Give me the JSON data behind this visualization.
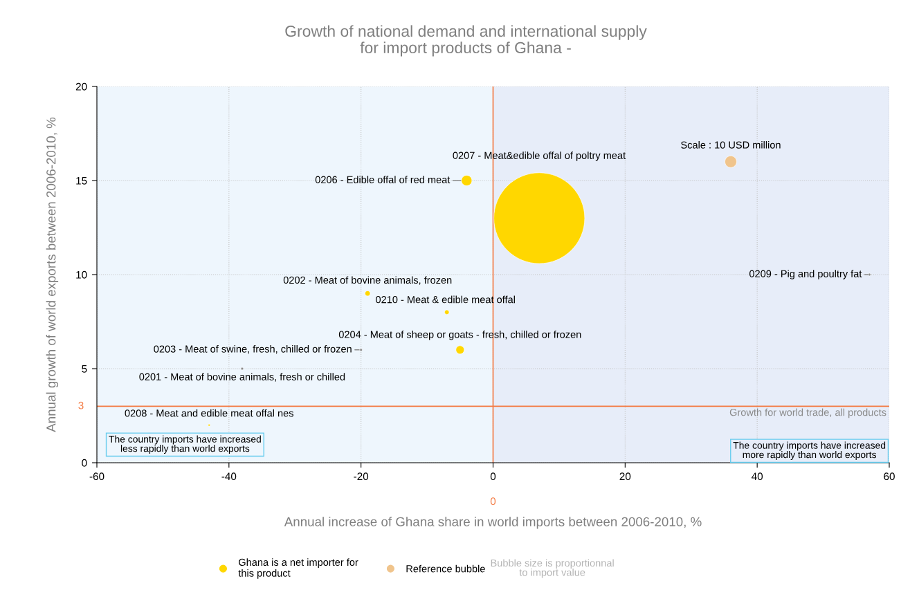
{
  "chart_data": {
    "type": "bubble",
    "title": "Growth of national demand and international supply\nfor import products of Ghana -",
    "xlabel": "Annual increase of Ghana share in world imports between 2006-2010, %",
    "ylabel": "Annual growth of world exports between 2006-2010, %",
    "xlim": [
      -60,
      60
    ],
    "ylim": [
      0,
      20
    ],
    "xticks": [
      -60,
      -40,
      -20,
      0,
      20,
      40,
      60
    ],
    "yticks": [
      0,
      5,
      10,
      15,
      20
    ],
    "grid": true,
    "legend": "bottom",
    "size_legend": [
      {
        "value": 10,
        "label": "Scale : 10 USD million"
      }
    ],
    "series": [
      {
        "name": "Ghana is a net importer for\nthis product",
        "color": "#ffd700",
        "x": [
          7,
          -4,
          57,
          -19,
          -7,
          -5,
          -20,
          -38,
          -43
        ],
        "values": [
          13,
          15,
          10,
          9,
          8,
          6,
          6,
          5,
          2
        ],
        "sizes": [
          600,
          8,
          0.5,
          2,
          1.5,
          5,
          0.5,
          0.5,
          0.3
        ],
        "colors": [
          "#ffd700",
          "#ffd700",
          "#8c8c8c",
          "#ffd700",
          "#ffd700",
          "#ffd700",
          "#8c8c8c",
          "#8c8c8c",
          "#ffd700"
        ]
      },
      {
        "name": "Reference bubble",
        "color": "#f0c48c"
      }
    ],
    "ref_lines": [
      {
        "axis": "x",
        "value": 0,
        "label": "0",
        "color": "#f47a42"
      },
      {
        "axis": "y",
        "value": 3,
        "label": "3",
        "color": "#f47a42"
      }
    ],
    "bands": [
      {
        "axis": "x",
        "from": -60,
        "to": 0,
        "label": "The country imports have increased\nless rapidly than world exports",
        "color": "#eef6fd"
      },
      {
        "axis": "x",
        "from": 0,
        "to": 60,
        "label": "The country imports have increased\nmore rapidly than world exports",
        "color": "#e7edf9"
      }
    ],
    "annotations": [
      "0207 - Meat&edible offal of poltry meat",
      {
        "text": "0206 - Edible offal of red meat",
        "x": -4,
        "y": 15
      },
      {
        "text": "0209 - Pig and poultry fat",
        "x": 57,
        "y": 10
      },
      {
        "text": "0202 - Meat of bovine animals, frozen",
        "x": -19,
        "y": 9
      },
      {
        "text": "0210 - Meat & edible meat offal",
        "x": -7,
        "y": 8
      },
      {
        "text": "0204 - Meat of sheep or goats - fresh, chilled or frozen",
        "x": -5,
        "y": 6
      },
      {
        "text": "0203 - Meat of swine, fresh, chilled or frozen",
        "x": -20,
        "y": 6
      },
      {
        "text": "0201 - Meat of bovine animals, fresh or chilled",
        "x": -38,
        "y": 5
      },
      {
        "text": "0208 - Meat and edible meat offal nes",
        "x": -43,
        "y": 2
      },
      {
        "text": "Growth for world trade, all products",
        "x": 60,
        "y": 3
      },
      "Bubble size is proportionnal\nto import value"
    ]
  }
}
